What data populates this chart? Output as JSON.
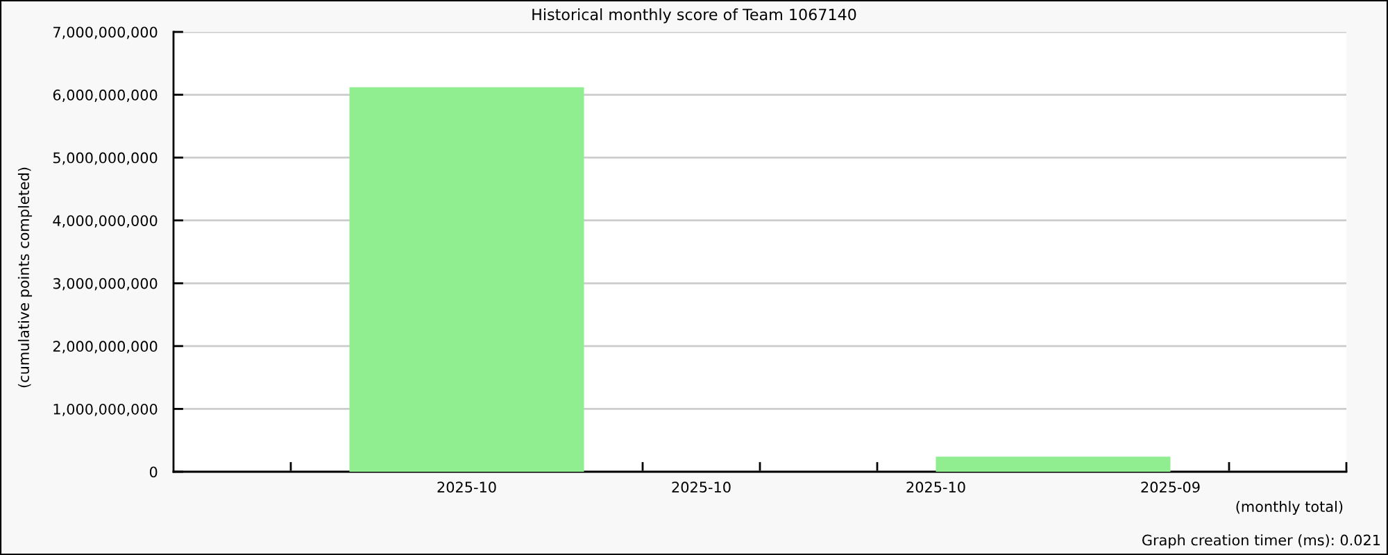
{
  "chart_data": {
    "type": "bar",
    "title": "Historical monthly score of Team 1067140",
    "xlabel": "(monthly total)",
    "ylabel": "(cumulative points completed)",
    "annotations": [
      "Graph creation timer (ms): 0.021"
    ],
    "categories": [
      null,
      null,
      "2025-10",
      null,
      "2025-10",
      null,
      "2025-10",
      null,
      "2025-09",
      null
    ],
    "values": [
      null,
      null,
      6120000000,
      null,
      null,
      null,
      null,
      240000000,
      null,
      null
    ],
    "color": "#90ee90",
    "ylim": [
      0,
      7000000000
    ],
    "yticks": [
      0,
      {
        "value": 1000000000,
        "label": "1,000,000,000"
      },
      {
        "value": 2000000000,
        "label": "2,000,000,000"
      },
      {
        "value": 3000000000,
        "label": "3,000,000,000"
      },
      {
        "value": 4000000000,
        "label": "4,000,000,000"
      },
      {
        "value": 5000000000,
        "label": "5,000,000,000"
      },
      {
        "value": 6000000000,
        "label": "6,000,000,000"
      },
      {
        "value": 7000000000,
        "label": "7,000,000,000"
      }
    ],
    "grid": "y",
    "legend": false
  }
}
